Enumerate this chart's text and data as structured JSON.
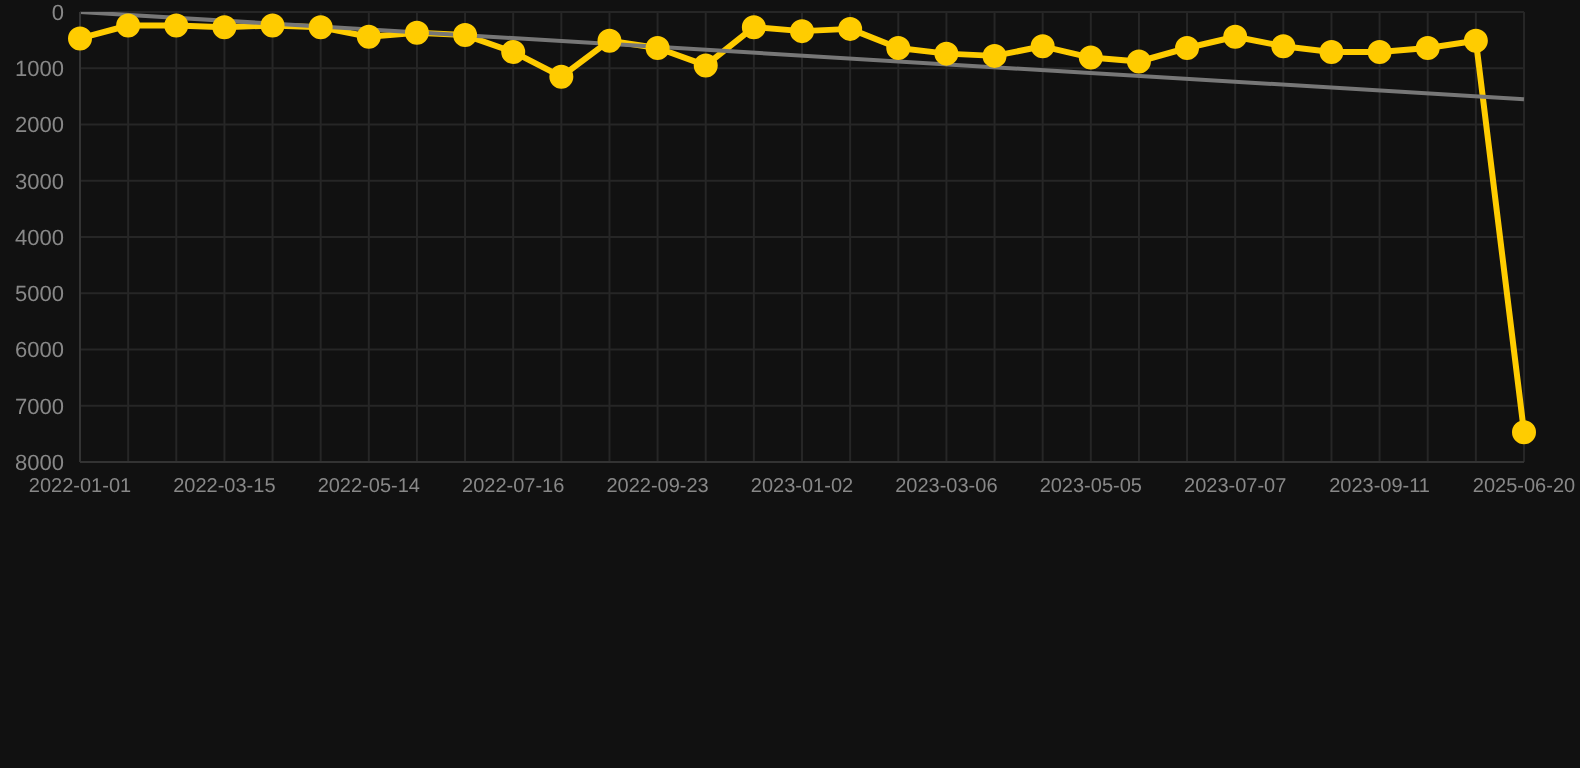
{
  "chart_data": {
    "type": "line",
    "categories": [
      "2022-01-01",
      null,
      null,
      "2022-03-15",
      null,
      null,
      "2022-05-14",
      null,
      null,
      "2022-07-16",
      null,
      null,
      "2022-09-23",
      null,
      null,
      "2023-01-02",
      null,
      null,
      "2023-03-06",
      null,
      null,
      "2023-05-05",
      null,
      null,
      "2023-07-07",
      null,
      null,
      "2023-09-11",
      null,
      null,
      "2025-06-20"
    ],
    "series": [
      {
        "color": "#ffcc00",
        "values": [
          470,
          240,
          240,
          270,
          240,
          270,
          440,
          370,
          410,
          710,
          1150,
          510,
          640,
          950,
          270,
          340,
          300,
          640,
          740,
          780,
          610,
          810,
          880,
          640,
          440,
          610,
          710,
          710,
          640,
          510,
          7470
        ]
      },
      {
        "type": "line",
        "color": "#777777",
        "values": [
          0,
          null,
          null,
          null,
          null,
          null,
          null,
          null,
          null,
          null,
          null,
          null,
          null,
          null,
          null,
          null,
          null,
          null,
          null,
          null,
          null,
          null,
          null,
          null,
          null,
          null,
          null,
          null,
          null,
          null,
          1550
        ],
        "marker": "none"
      }
    ],
    "ylim": [
      8000,
      0
    ],
    "yticks": [
      0,
      1000,
      2000,
      3000,
      4000,
      5000,
      6000,
      7000,
      8000
    ],
    "grid": true,
    "marker": "circle",
    "legend": false
  }
}
